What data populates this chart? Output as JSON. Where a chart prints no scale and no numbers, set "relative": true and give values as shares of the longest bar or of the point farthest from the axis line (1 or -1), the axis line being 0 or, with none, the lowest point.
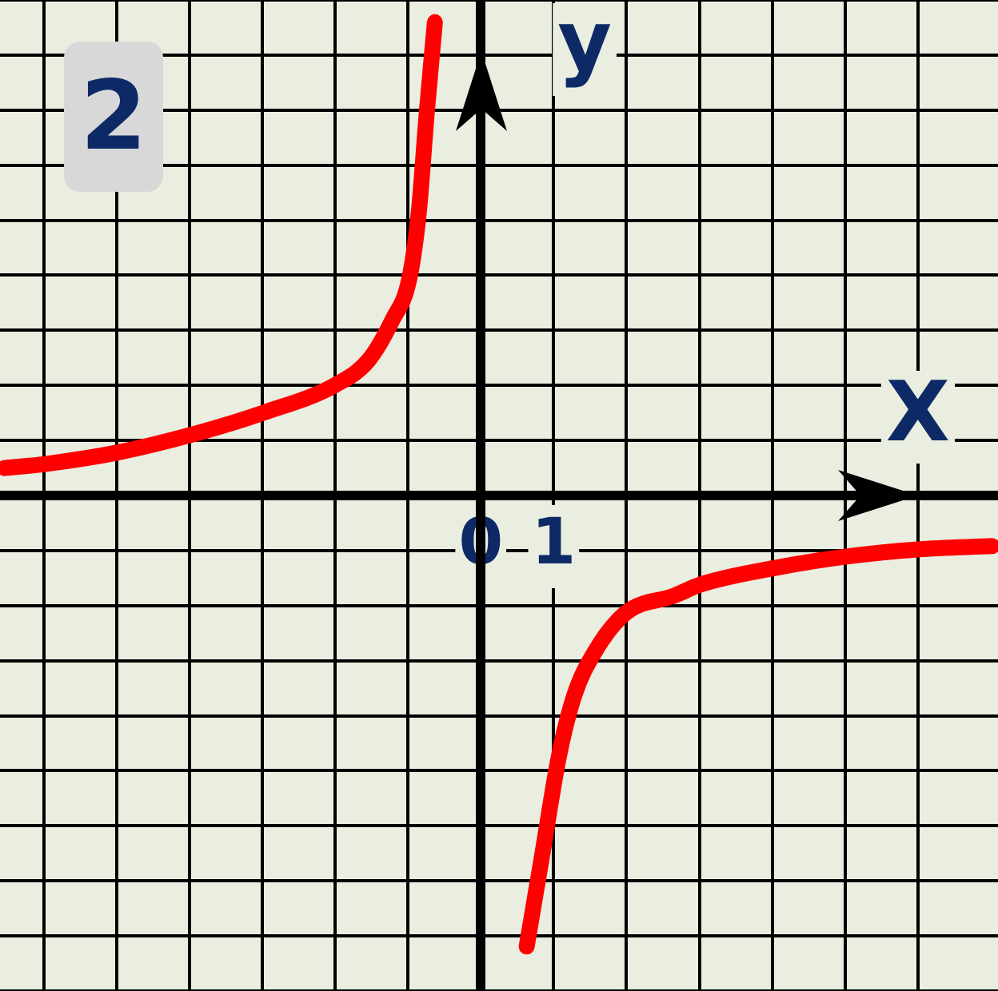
{
  "chart_data": {
    "type": "line",
    "xlabel": "X",
    "ylabel": "y",
    "annotations": [
      "2"
    ],
    "xlim": [
      -6.6,
      7.1
    ],
    "relative": true,
    "xticks": [
      {
        "value": -6,
        "label": null
      },
      {
        "value": -5,
        "label": null
      },
      {
        "value": -4,
        "label": null
      },
      {
        "value": -3,
        "label": null
      },
      {
        "value": -2,
        "label": null
      },
      {
        "value": -1,
        "label": null
      },
      0,
      1,
      {
        "value": 2,
        "label": null
      },
      {
        "value": 3,
        "label": null
      },
      {
        "value": 4,
        "label": null
      },
      {
        "value": 5,
        "label": null
      },
      {
        "value": 6,
        "label": null
      }
    ],
    "tick_labels": "x",
    "grid": true,
    "legend": false,
    "marker": "none",
    "line_style": "solid",
    "series": [
      {
        "color": "#ff0000",
        "x": [
          -6.54,
          -5.96,
          -4.98,
          -3.98,
          -2.98,
          -1.98,
          -1.54,
          -1.22,
          -0.98,
          -0.85,
          -0.74,
          -0.63
        ],
        "values": [
          0.058,
          0.067,
          0.091,
          0.128,
          0.175,
          0.235,
          0.286,
          0.369,
          0.459,
          0.6,
          0.812,
          1
        ]
      },
      {
        "color": "#ff0000",
        "x": [
          0.63,
          0.85,
          1.07,
          1.28,
          1.57,
          2.0,
          2.65,
          3.02,
          4.04,
          5.02,
          6.0,
          7.02
        ],
        "values": [
          -0.953,
          -0.753,
          -0.553,
          -0.424,
          -0.329,
          -0.247,
          -0.212,
          -0.188,
          -0.153,
          -0.129,
          -0.114,
          -0.107
        ]
      }
    ]
  }
}
